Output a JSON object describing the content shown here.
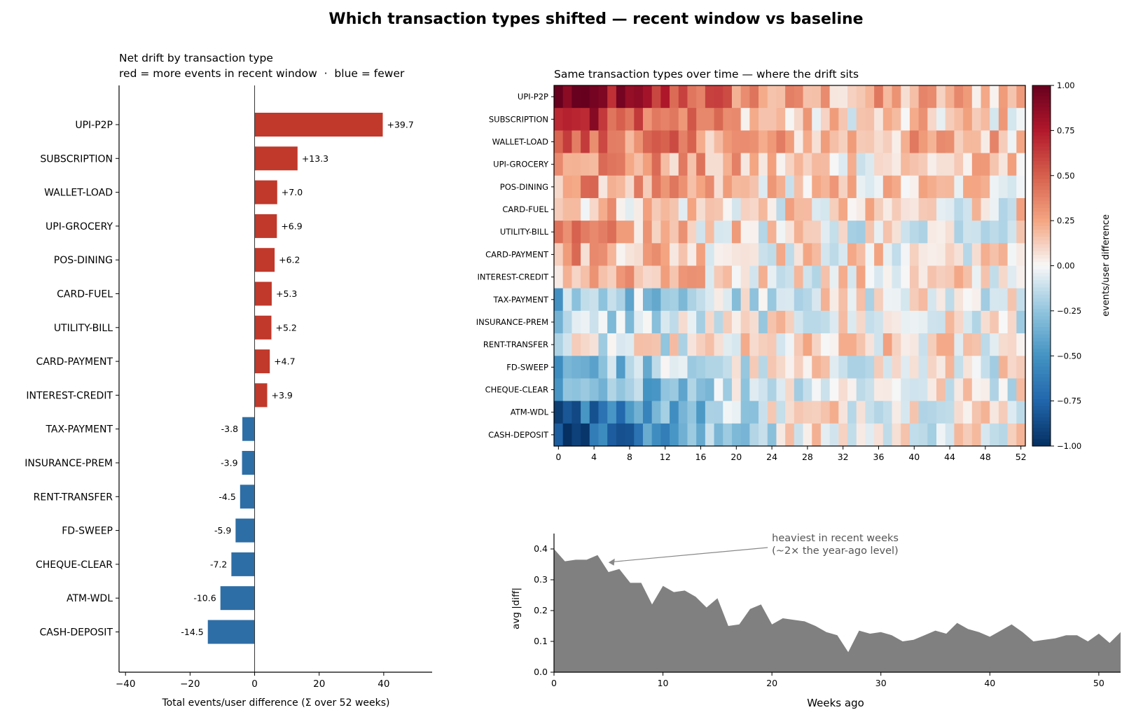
{
  "suptitle": "Which transaction types shifted — recent window vs baseline",
  "chart_data": [
    {
      "type": "bar",
      "orientation": "horizontal",
      "title": "Net drift by transaction type",
      "subtitle": "red = more events in recent window  ·  blue = fewer",
      "xlabel": "Total events/user difference (Σ over 52 weeks)",
      "xlim": [
        -42,
        55
      ],
      "xticks": [
        -40,
        -20,
        0,
        20,
        40
      ],
      "categories": [
        "UPI-P2P",
        "SUBSCRIPTION",
        "WALLET-LOAD",
        "UPI-GROCERY",
        "POS-DINING",
        "CARD-FUEL",
        "UTILITY-BILL",
        "CARD-PAYMENT",
        "INTEREST-CREDIT",
        "TAX-PAYMENT",
        "INSURANCE-PREM",
        "RENT-TRANSFER",
        "FD-SWEEP",
        "CHEQUE-CLEAR",
        "ATM-WDL",
        "CASH-DEPOSIT"
      ],
      "values": [
        39.7,
        13.3,
        7.0,
        6.9,
        6.2,
        5.3,
        5.2,
        4.7,
        3.9,
        -3.8,
        -3.9,
        -4.5,
        -5.9,
        -7.2,
        -10.6,
        -14.5
      ],
      "data_labels": [
        "+39.7",
        "+13.3",
        "+7.0",
        "+6.9",
        "+6.2",
        "+5.3",
        "+5.2",
        "+4.7",
        "+3.9",
        "-3.8",
        "-3.9",
        "-4.5",
        "-5.9",
        "-7.2",
        "-10.6",
        "-14.5"
      ],
      "colors": {
        "positive": "#c0392b",
        "negative": "#2e6ea6"
      }
    },
    {
      "type": "heatmap",
      "title": "Same transaction types over time — where the drift sits",
      "rows": [
        "UPI-P2P",
        "SUBSCRIPTION",
        "WALLET-LOAD",
        "UPI-GROCERY",
        "POS-DINING",
        "CARD-FUEL",
        "UTILITY-BILL",
        "CARD-PAYMENT",
        "INTEREST-CREDIT",
        "TAX-PAYMENT",
        "INSURANCE-PREM",
        "RENT-TRANSFER",
        "FD-SWEEP",
        "CHEQUE-CLEAR",
        "ATM-WDL",
        "CASH-DEPOSIT"
      ],
      "x_range": [
        0,
        52
      ],
      "xticks": [
        0,
        4,
        8,
        12,
        16,
        20,
        24,
        28,
        32,
        36,
        40,
        44,
        48,
        52
      ],
      "row_trend": {
        "start": [
          1.0,
          0.8,
          0.5,
          0.4,
          0.3,
          0.2,
          0.3,
          0.3,
          0.2,
          -0.3,
          -0.2,
          -0.1,
          -0.35,
          -0.45,
          -0.75,
          -0.9
        ],
        "end": [
          0.2,
          0.1,
          0.2,
          0.1,
          0.1,
          0.05,
          0.0,
          0.05,
          0.05,
          0.0,
          0.0,
          0.05,
          0.0,
          0.0,
          0.05,
          0.0
        ]
      },
      "colorbar": {
        "label": "events/user difference",
        "range": [
          -1.0,
          1.0
        ],
        "ticks": [
          "1.00",
          "0.75",
          "0.50",
          "0.25",
          "0.00",
          "−0.25",
          "−0.50",
          "−0.75",
          "−1.00"
        ],
        "colormap": "RdBu_r"
      }
    },
    {
      "type": "area",
      "xlabel": "Weeks ago",
      "ylabel": "avg |diff|",
      "xlim": [
        0,
        52
      ],
      "ylim": [
        0,
        0.45
      ],
      "xticks": [
        "0",
        "10",
        "20",
        "30",
        "40",
        "50"
      ],
      "yticks": [
        "0.0",
        "0.1",
        "0.2",
        "0.3",
        "0.4"
      ],
      "color": "#808080",
      "x": [
        0,
        1,
        2,
        3,
        4,
        5,
        6,
        7,
        8,
        9,
        10,
        11,
        12,
        13,
        14,
        15,
        16,
        17,
        18,
        19,
        20,
        21,
        22,
        23,
        24,
        25,
        26,
        27,
        28,
        29,
        30,
        31,
        32,
        33,
        34,
        35,
        36,
        37,
        38,
        39,
        40,
        41,
        42,
        43,
        44,
        45,
        46,
        47,
        48,
        49,
        50,
        51,
        52
      ],
      "y": [
        0.4,
        0.36,
        0.365,
        0.365,
        0.38,
        0.325,
        0.335,
        0.29,
        0.29,
        0.22,
        0.28,
        0.26,
        0.265,
        0.245,
        0.21,
        0.24,
        0.15,
        0.155,
        0.205,
        0.22,
        0.155,
        0.175,
        0.17,
        0.165,
        0.15,
        0.13,
        0.12,
        0.065,
        0.135,
        0.125,
        0.13,
        0.12,
        0.1,
        0.105,
        0.12,
        0.135,
        0.125,
        0.16,
        0.14,
        0.13,
        0.115,
        0.135,
        0.155,
        0.13,
        0.1,
        0.105,
        0.11,
        0.12,
        0.12,
        0.1,
        0.125,
        0.095,
        0.13
      ],
      "annotation": {
        "lines": [
          "heaviest in recent weeks",
          "(~2× the year-ago level)"
        ],
        "x": 5,
        "y": 0.37
      }
    }
  ]
}
